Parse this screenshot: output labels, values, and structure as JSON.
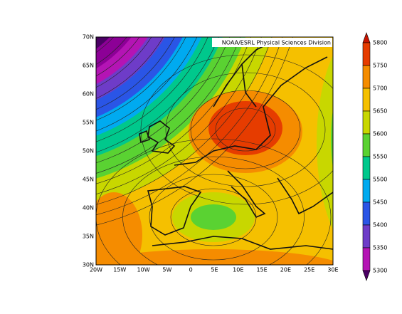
{
  "attribution": "NOAA/ESRL Physical Sciences Division",
  "lat_labels": [
    "70N",
    "65N",
    "60N",
    "55N",
    "50N",
    "45N",
    "40N",
    "35N",
    "30N"
  ],
  "lon_labels": [
    "20W",
    "15W",
    "10W",
    "5W",
    "0",
    "5E",
    "10E",
    "15E",
    "20E",
    "25E",
    "30E"
  ],
  "colorbar": {
    "labels": [
      5800,
      5750,
      5700,
      5650,
      5600,
      5550,
      5500,
      5450,
      5400,
      5350,
      5300
    ],
    "colors": [
      "#4a0064",
      "#8c0096",
      "#b414b4",
      "#6e3cc8",
      "#2a55e6",
      "#00aaf0",
      "#00c88c",
      "#5ad232",
      "#c8d700",
      "#f5c000",
      "#f58c00",
      "#e63c00",
      "#c81400"
    ]
  }
}
